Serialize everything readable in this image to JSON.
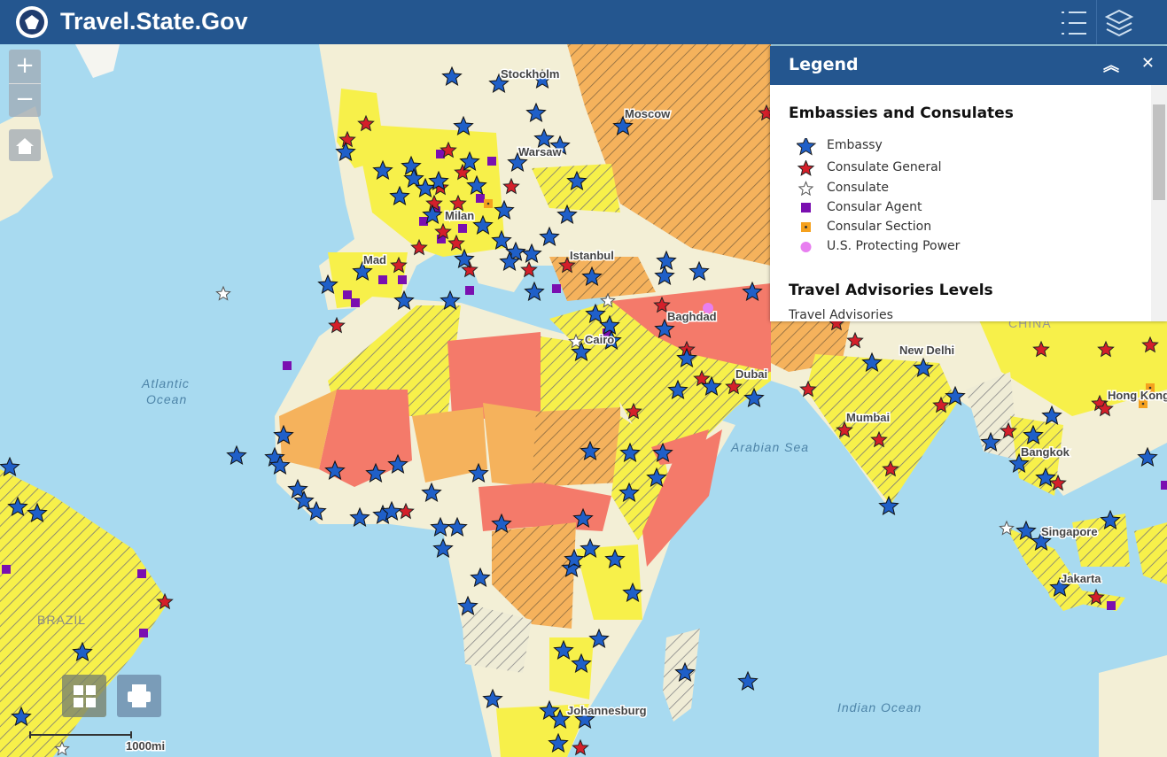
{
  "header": {
    "title": "Travel.State.Gov"
  },
  "legend": {
    "title": "Legend",
    "sections": [
      {
        "title": "Embassies and Consulates",
        "items": [
          "Embassy",
          "Consulate General",
          "Consulate",
          "Consular Agent",
          "Consular Section",
          "U.S. Protecting Power"
        ]
      },
      {
        "title": "Travel Advisories Levels",
        "subtitle": "Travel Advisories"
      }
    ]
  },
  "map": {
    "labels": [
      "Stockholm",
      "Moscow",
      "Warsaw",
      "Milan",
      "Mad",
      "Istanbul",
      "Baghdad",
      "Cairo",
      "Dubai",
      "New Delhi",
      "Mumbai",
      "Bangkok",
      "Singapore",
      "Jakarta",
      "Hong Kong",
      "Johannesburg",
      "Atlantic",
      "Ocean",
      "Arabian Sea",
      "Indian Ocean",
      "BRAZIL",
      "CHINA"
    ]
  },
  "scale": {
    "label": "1000mi"
  }
}
